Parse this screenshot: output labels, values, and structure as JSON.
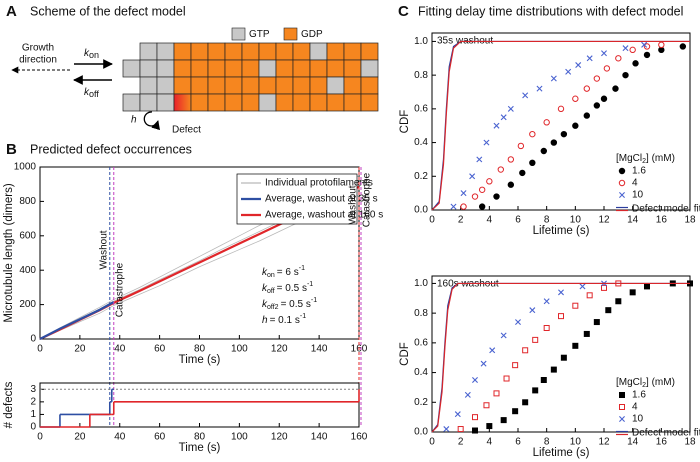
{
  "scheme": {
    "label": "A",
    "title": "Scheme of the defect model",
    "growth": [
      "Growth",
      "direction"
    ],
    "k_on": {
      "symbol": "k",
      "sub": "on"
    },
    "k_off": {
      "symbol": "k",
      "sub": "off"
    },
    "legend": [
      {
        "name": "GTP",
        "color": "#c8c8c8"
      },
      {
        "name": "GDP",
        "color": "#f6861f"
      }
    ],
    "h": "h",
    "defect": "Defect"
  },
  "chart_data": [
    {
      "type": "line",
      "panel_label": "B",
      "title": "Predicted defect occurrences",
      "xlabel": "Time (s)",
      "ylabel": "Microtubule length (dimers)",
      "xlim": [
        0,
        160
      ],
      "ylim": [
        0,
        1000
      ],
      "xticks": [
        0,
        20,
        40,
        60,
        80,
        100,
        120,
        140,
        160
      ],
      "yticks": [
        0,
        200,
        400,
        600,
        800,
        1000
      ],
      "x": [
        0,
        10,
        20,
        30,
        37,
        50,
        60,
        70,
        80,
        90,
        100,
        110,
        120,
        130,
        140,
        150,
        160
      ],
      "series": [
        {
          "name": "Individual protofilaments",
          "color": "#b9b9b9",
          "values": [
            [
              0,
              65,
              125,
              185,
              230,
              300,
              360,
              420,
              480,
              540,
              600,
              660,
              715,
              775,
              835,
              895,
              950
            ],
            [
              0,
              50,
              100,
              150,
              195,
              260,
              310,
              365,
              420,
              470,
              520,
              570,
              625,
              680,
              730,
              785,
              835
            ],
            [
              0,
              58,
              118,
              175,
              220,
              288,
              345,
              400,
              455,
              515,
              570,
              625,
              680,
              740,
              795,
              855,
              910
            ]
          ]
        },
        {
          "name": "Average, washout at 35 s",
          "color": "#2e4fa3",
          "values": [
            0,
            60,
            115,
            170,
            215,
            null,
            null,
            null,
            null,
            null,
            null,
            null,
            null,
            null,
            null,
            null,
            null
          ]
        },
        {
          "name": "Average, washout at 160 s",
          "color": "#e0262a",
          "values": [
            0,
            55,
            112,
            168,
            210,
            280,
            335,
            390,
            445,
            500,
            555,
            610,
            665,
            720,
            775,
            830,
            885
          ]
        }
      ],
      "events": [
        {
          "label": "Washout",
          "x": 35,
          "color": "#2e4fa3"
        },
        {
          "label": "Catastrophe",
          "x": 37,
          "color": "#c13fc1"
        },
        {
          "label": "Washout",
          "x": 160,
          "color": "#e0262a"
        },
        {
          "label": "Catastrophe",
          "x": 161,
          "color": "#c13fc1"
        }
      ],
      "parameters": [
        {
          "symbol": "k",
          "sub": "on",
          "text": "= 6 s",
          "sup": "-1"
        },
        {
          "symbol": "k",
          "sub": "off",
          "text": "= 0.5 s",
          "sup": "-1"
        },
        {
          "symbol": "k",
          "sub": "off2",
          "text": "= 0.5 s",
          "sup": "-1"
        },
        {
          "symbol": "h",
          "text": "= 0.1 s",
          "sup": "-1"
        }
      ]
    },
    {
      "type": "step",
      "xlabel": "Time (s)",
      "ylabel": "# defects",
      "xlim": [
        0,
        160
      ],
      "ylim": [
        0,
        3.5
      ],
      "xticks": [
        0,
        20,
        40,
        60,
        80,
        100,
        120,
        140,
        160
      ],
      "yticks": [
        0,
        1,
        2,
        3
      ],
      "reference_line": {
        "value": 3,
        "color": "#808080"
      },
      "x": [
        0,
        10,
        25,
        35,
        36,
        37,
        160
      ],
      "series": [
        {
          "color": "#2e4fa3",
          "values": [
            0,
            1,
            1,
            2,
            3,
            null,
            null
          ]
        },
        {
          "color": "#e0262a",
          "values": [
            0,
            0,
            1,
            1,
            1,
            2,
            3
          ]
        }
      ]
    },
    {
      "type": "scatter",
      "panel_label": "C",
      "title": "Fitting delay time distributions with defect model",
      "subtitle": "35s washout",
      "xlabel": "Lifetime (s)",
      "ylabel": "CDF",
      "xlim": [
        0,
        18
      ],
      "ylim": [
        0,
        1.05
      ],
      "xticks": [
        0,
        2,
        4,
        6,
        8,
        10,
        12,
        14,
        16,
        18
      ],
      "yticks": [
        {
          "value": 0,
          "label": "0.0"
        },
        {
          "value": 0.2,
          "label": "0.2"
        },
        {
          "value": 0.4,
          "label": "0.4"
        },
        {
          "value": 0.6,
          "label": "0.6"
        },
        {
          "value": 0.8,
          "label": "0.8"
        },
        {
          "value": 1,
          "label": "1.0"
        }
      ],
      "legend_title": [
        "[MgCl",
        "2",
        "] (mM)"
      ],
      "series": [
        {
          "name": "1.6",
          "color": "#000000",
          "marker": "filled-circle",
          "x": [
            3.5,
            4.5,
            5.5,
            6.3,
            7,
            7.8,
            8.5,
            9.2,
            10,
            10.8,
            11.5,
            12,
            12.8,
            13.5,
            14.2,
            15,
            16,
            17.5
          ],
          "values": [
            0.02,
            0.08,
            0.15,
            0.22,
            0.28,
            0.35,
            0.4,
            0.45,
            0.5,
            0.56,
            0.62,
            0.66,
            0.72,
            0.8,
            0.87,
            0.92,
            0.95,
            0.97
          ]
        },
        {
          "name": "4",
          "color": "#e0262a",
          "marker": "open-circle",
          "x": [
            2.2,
            3,
            3.5,
            4,
            4.8,
            5.5,
            6.2,
            7,
            8,
            9,
            10,
            10.8,
            11.5,
            12.2,
            13,
            14,
            15,
            16
          ],
          "values": [
            0.02,
            0.08,
            0.12,
            0.17,
            0.24,
            0.3,
            0.38,
            0.45,
            0.52,
            0.6,
            0.66,
            0.72,
            0.78,
            0.84,
            0.9,
            0.95,
            0.97,
            0.98
          ]
        },
        {
          "name": "10",
          "color": "#4a63d0",
          "marker": "x",
          "x": [
            1.5,
            2.2,
            2.8,
            3.3,
            3.8,
            4.5,
            5,
            5.5,
            6.5,
            7.5,
            8.5,
            9.5,
            10.2,
            11,
            12,
            13.5,
            14.8
          ],
          "values": [
            0.02,
            0.1,
            0.2,
            0.3,
            0.4,
            0.5,
            0.55,
            0.6,
            0.68,
            0.72,
            0.78,
            0.82,
            0.86,
            0.9,
            0.93,
            0.96,
            0.98
          ]
        }
      ],
      "fit": {
        "name": "Defect model fit",
        "x": [
          0,
          0.5,
          0.8,
          1,
          1.2,
          1.5,
          2,
          3,
          18
        ],
        "curves": [
          {
            "color": "#2b3f9e",
            "values": [
              0,
              0.05,
              0.3,
              0.6,
              0.85,
              0.97,
              1,
              1,
              1
            ]
          },
          {
            "color": "#d8262a",
            "values": [
              0,
              0.04,
              0.27,
              0.57,
              0.82,
              0.96,
              1,
              1,
              1
            ]
          }
        ]
      }
    },
    {
      "type": "scatter",
      "subtitle": "160s washout",
      "xlabel": "Lifetime (s)",
      "ylabel": "CDF",
      "xlim": [
        0,
        18
      ],
      "ylim": [
        0,
        1.05
      ],
      "xticks": [
        0,
        2,
        4,
        6,
        8,
        10,
        12,
        14,
        16,
        18
      ],
      "yticks": [
        {
          "value": 0,
          "label": "0.0"
        },
        {
          "value": 0.2,
          "label": "0.2"
        },
        {
          "value": 0.4,
          "label": "0.4"
        },
        {
          "value": 0.6,
          "label": "0.6"
        },
        {
          "value": 0.8,
          "label": "0.8"
        },
        {
          "value": 1,
          "label": "1.0"
        }
      ],
      "legend_title": [
        "[MgCl",
        "2",
        "] (mM)"
      ],
      "series": [
        {
          "name": "1.6",
          "color": "#000000",
          "marker": "filled-square",
          "x": [
            3,
            4,
            5,
            5.8,
            6.5,
            7.2,
            7.8,
            8.5,
            9.2,
            10,
            10.8,
            11.5,
            12.3,
            13,
            14,
            15,
            16.8,
            18
          ],
          "values": [
            0.01,
            0.04,
            0.08,
            0.14,
            0.2,
            0.28,
            0.35,
            0.42,
            0.5,
            0.58,
            0.66,
            0.74,
            0.82,
            0.88,
            0.94,
            0.98,
            1,
            1
          ]
        },
        {
          "name": "4",
          "color": "#e0262a",
          "marker": "open-square",
          "x": [
            2,
            3,
            3.8,
            4.5,
            5.2,
            5.8,
            6.5,
            7.2,
            8,
            9,
            10,
            11,
            12,
            13
          ],
          "values": [
            0.02,
            0.1,
            0.18,
            0.26,
            0.36,
            0.45,
            0.55,
            0.62,
            0.7,
            0.78,
            0.85,
            0.92,
            0.97,
            1
          ]
        },
        {
          "name": "10",
          "color": "#4a63d0",
          "marker": "x",
          "x": [
            1,
            1.8,
            2.5,
            3,
            3.6,
            4.2,
            5,
            6,
            7,
            8,
            9,
            10.5,
            12
          ],
          "values": [
            0.02,
            0.12,
            0.25,
            0.35,
            0.46,
            0.55,
            0.65,
            0.74,
            0.82,
            0.88,
            0.94,
            0.98,
            1
          ]
        }
      ],
      "fit": {
        "name": "Defect model fit",
        "x": [
          0,
          0.4,
          0.7,
          0.9,
          1.1,
          1.4,
          1.8,
          2.5,
          18
        ],
        "curves": [
          {
            "color": "#2b3f9e",
            "values": [
              0,
              0.05,
              0.3,
              0.6,
              0.85,
              0.97,
              1,
              1,
              1
            ]
          },
          {
            "color": "#d8262a",
            "values": [
              0,
              0.04,
              0.27,
              0.57,
              0.82,
              0.96,
              1,
              1,
              1
            ]
          }
        ]
      }
    }
  ]
}
